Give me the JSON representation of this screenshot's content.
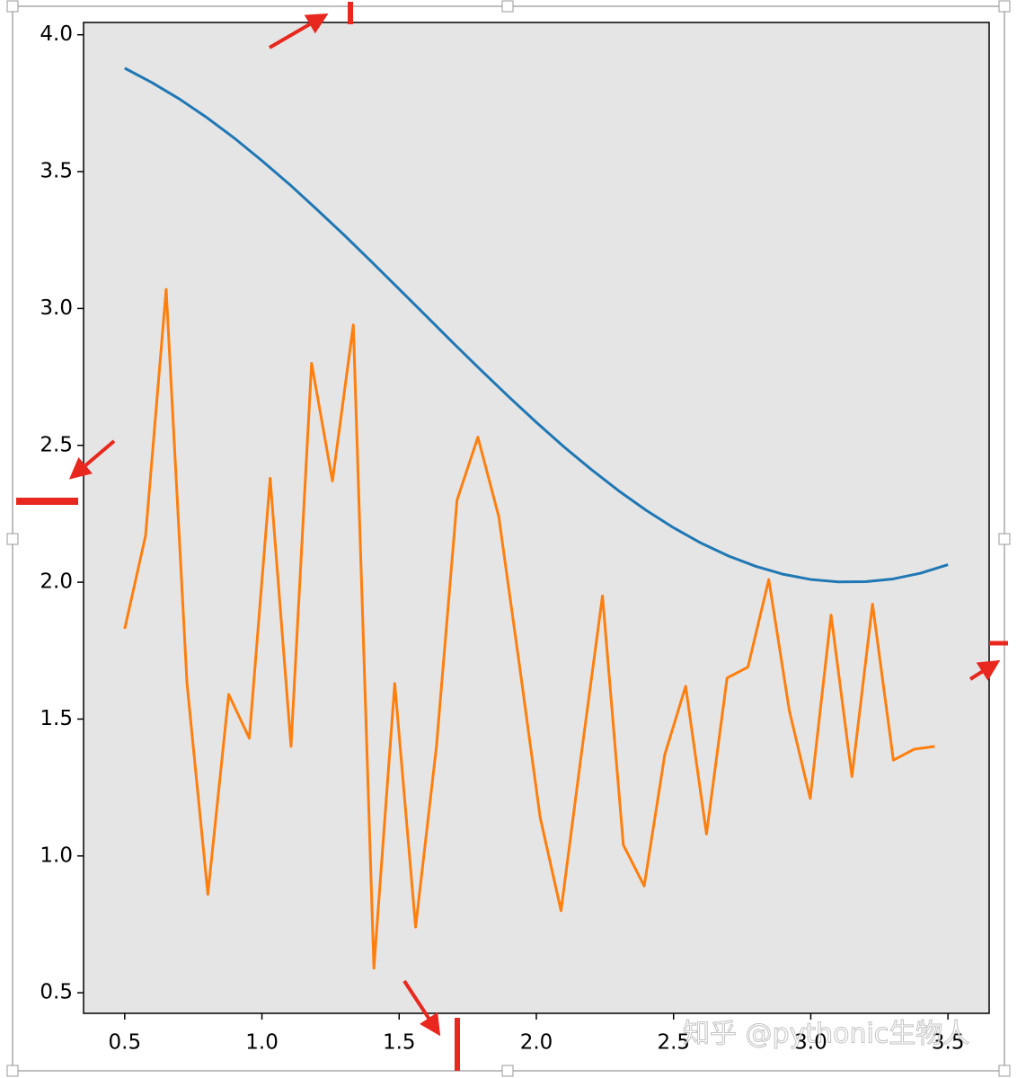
{
  "chart_data": {
    "type": "line",
    "xlim": [
      0.35,
      3.65
    ],
    "ylim": [
      0.425,
      4.045
    ],
    "xticks": [
      0.5,
      {
        "value": 1,
        "label": "1.0"
      },
      1.5,
      {
        "value": 2,
        "label": "2.0"
      },
      2.5,
      {
        "value": 3,
        "label": "3.0"
      },
      3.5
    ],
    "yticks": [
      0.5,
      {
        "value": 1,
        "label": "1.0"
      },
      1.5,
      {
        "value": 2,
        "label": "2.0"
      },
      2.5,
      {
        "value": 3,
        "label": "3.0"
      },
      3.5,
      {
        "value": 4,
        "label": "4.0"
      }
    ],
    "background": "#e5e5e5",
    "series": [
      {
        "color": "#1f77b4",
        "x": [
          0.5,
          0.6,
          0.7,
          0.8,
          0.9,
          1.0,
          1.1,
          1.2,
          1.3,
          1.4,
          1.5,
          1.6,
          1.7,
          1.8,
          1.9,
          2.0,
          2.1,
          2.2,
          2.3,
          2.4,
          2.5,
          2.6,
          2.7,
          2.8,
          2.9,
          3.0,
          3.1,
          3.2,
          3.3,
          3.4,
          3.5
        ],
        "values": [
          3.878,
          3.825,
          3.765,
          3.697,
          3.622,
          3.54,
          3.454,
          3.362,
          3.268,
          3.17,
          3.071,
          2.971,
          2.871,
          2.773,
          2.677,
          2.584,
          2.495,
          2.412,
          2.334,
          2.263,
          2.199,
          2.143,
          2.096,
          2.058,
          2.029,
          2.01,
          2.001,
          2.002,
          2.012,
          2.033,
          2.064
        ]
      },
      {
        "color": "#ff7f0e",
        "x": [
          0.5,
          0.576,
          0.651,
          0.727,
          0.803,
          0.879,
          0.954,
          1.03,
          1.106,
          1.181,
          1.257,
          1.333,
          1.408,
          1.484,
          1.56,
          1.636,
          1.711,
          1.787,
          1.863,
          1.938,
          2.014,
          2.09,
          2.165,
          2.241,
          2.317,
          2.393,
          2.468,
          2.544,
          2.62,
          2.695,
          2.771,
          2.847,
          2.922,
          2.998,
          3.074,
          3.15,
          3.225,
          3.301,
          3.377,
          3.452
        ],
        "values": [
          1.83,
          2.17,
          3.07,
          1.63,
          0.86,
          1.59,
          1.43,
          2.38,
          1.4,
          2.8,
          2.37,
          2.94,
          0.59,
          1.63,
          0.74,
          1.4,
          2.3,
          2.53,
          2.24,
          1.7,
          1.14,
          0.8,
          1.38,
          1.95,
          1.04,
          0.89,
          1.37,
          1.62,
          1.08,
          1.65,
          1.69,
          2.01,
          1.53,
          1.21,
          1.88,
          1.29,
          1.92,
          1.35,
          1.39,
          1.4
        ]
      }
    ],
    "watermark": "知乎 @pythonic生物人"
  }
}
